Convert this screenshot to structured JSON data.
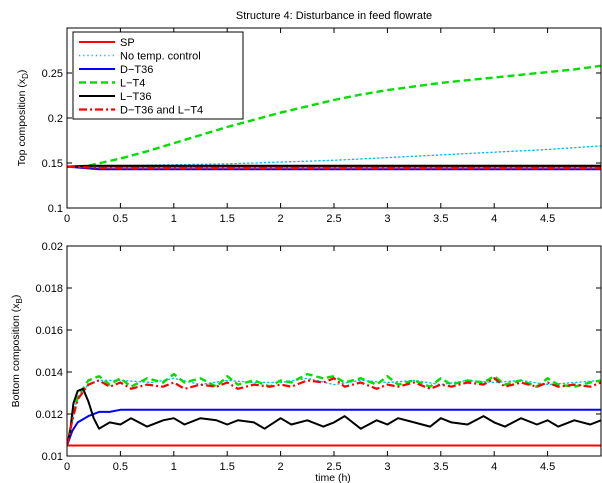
{
  "chart_data": [
    {
      "type": "line",
      "title": "Structure 4: Disturbance in feed flowrate",
      "xlabel": "",
      "ylabel": "Top composition (x_D)",
      "ylabel_main": "Top composition (x",
      "ylabel_sub": "D",
      "ylabel_close": ")",
      "xlim": [
        0,
        5
      ],
      "ylim": [
        0.1,
        0.3
      ],
      "xticks": [
        0,
        0.5,
        1,
        1.5,
        2,
        2.5,
        3,
        3.5,
        4,
        4.5
      ],
      "xtick_labels": [
        "0",
        "0.5",
        "1",
        "1.5",
        "2",
        "2.5",
        "3",
        "3.5",
        "4",
        "4.5"
      ],
      "yticks": [
        0.1,
        0.15,
        0.2,
        0.25
      ],
      "ytick_labels": [
        "0.1",
        "0.15",
        "0.2",
        "0.25"
      ],
      "grid": false,
      "legend_position": "top-left",
      "series": [
        {
          "name": "SP",
          "color": "#ff0000",
          "style": "solid",
          "x": [
            0,
            5
          ],
          "y": [
            0.146,
            0.146
          ]
        },
        {
          "name": "No temp. control",
          "color": "#00bfff",
          "style": "dotted",
          "x": [
            0,
            0.2,
            0.5,
            1,
            1.5,
            2,
            2.5,
            3,
            3.5,
            4,
            4.5,
            5
          ],
          "y": [
            0.146,
            0.146,
            0.147,
            0.148,
            0.149,
            0.151,
            0.153,
            0.156,
            0.159,
            0.162,
            0.165,
            0.169
          ]
        },
        {
          "name": "D−T36",
          "color": "#0000ff",
          "style": "solid",
          "x": [
            0,
            0.1,
            0.3,
            0.5,
            1,
            1.5,
            2,
            2.5,
            3,
            3.5,
            4,
            4.5,
            5
          ],
          "y": [
            0.146,
            0.145,
            0.143,
            0.143,
            0.143,
            0.143,
            0.143,
            0.143,
            0.143,
            0.143,
            0.143,
            0.143,
            0.143
          ]
        },
        {
          "name": "L−T4",
          "color": "#00e000",
          "style": "dashed",
          "x": [
            0,
            0.1,
            0.2,
            0.5,
            0.75,
            1,
            1.25,
            1.5,
            1.75,
            2,
            2.25,
            2.5,
            2.75,
            3,
            3.25,
            3.5,
            3.75,
            4,
            4.25,
            4.5,
            4.75,
            5
          ],
          "y": [
            0.146,
            0.146,
            0.147,
            0.155,
            0.163,
            0.172,
            0.181,
            0.19,
            0.198,
            0.206,
            0.213,
            0.22,
            0.226,
            0.231,
            0.235,
            0.239,
            0.242,
            0.245,
            0.248,
            0.251,
            0.254,
            0.258
          ]
        },
        {
          "name": "L−T36",
          "color": "#000000",
          "style": "solid",
          "x": [
            0,
            0.2,
            0.5,
            1,
            1.5,
            2,
            2.5,
            3,
            3.5,
            4,
            4.5,
            5
          ],
          "y": [
            0.146,
            0.147,
            0.147,
            0.147,
            0.147,
            0.147,
            0.147,
            0.147,
            0.147,
            0.147,
            0.147,
            0.147
          ]
        },
        {
          "name": "D−T36 and L−T4",
          "color": "#ff0000",
          "style": "dashdot",
          "x": [
            0,
            0.2,
            0.5,
            1,
            1.5,
            2,
            2.5,
            3,
            3.5,
            4,
            4.5,
            5
          ],
          "y": [
            0.146,
            0.145,
            0.144,
            0.144,
            0.144,
            0.144,
            0.144,
            0.144,
            0.144,
            0.144,
            0.144,
            0.144
          ]
        }
      ]
    },
    {
      "type": "line",
      "title": "",
      "xlabel": "time (h)",
      "ylabel": "Bottom composition (x_B)",
      "ylabel_main": "Bottom composition (x",
      "ylabel_sub": "B",
      "ylabel_close": ")",
      "xlim": [
        0,
        5
      ],
      "ylim": [
        0.01,
        0.02
      ],
      "xticks": [
        0,
        0.5,
        1,
        1.5,
        2,
        2.5,
        3,
        3.5,
        4,
        4.5
      ],
      "xtick_labels": [
        "0",
        "0.5",
        "1",
        "1.5",
        "2",
        "2.5",
        "3",
        "3.5",
        "4",
        "4.5"
      ],
      "yticks": [
        0.01,
        0.012,
        0.014,
        0.016,
        0.018,
        0.02
      ],
      "ytick_labels": [
        "0.01",
        "0.012",
        "0.014",
        "0.016",
        "0.018",
        "0.02"
      ],
      "grid": false,
      "series": [
        {
          "name": "SP",
          "color": "#ff0000",
          "style": "solid",
          "x": [
            0,
            5
          ],
          "y": [
            0.0105,
            0.0105
          ]
        },
        {
          "name": "No temp. control",
          "color": "#00bfff",
          "style": "dotted",
          "x": [
            0,
            0.05,
            0.1,
            0.2,
            0.3,
            0.5,
            0.8,
            1,
            1.25,
            1.5,
            1.75,
            2,
            2.25,
            2.5,
            2.75,
            3,
            3.25,
            3.5,
            3.75,
            4,
            4.25,
            4.5,
            4.75,
            5
          ],
          "y": [
            0.0105,
            0.0118,
            0.0128,
            0.0134,
            0.0136,
            0.0136,
            0.0135,
            0.0137,
            0.0134,
            0.0136,
            0.0135,
            0.0135,
            0.0137,
            0.0134,
            0.0136,
            0.0135,
            0.0136,
            0.0134,
            0.0136,
            0.0135,
            0.0136,
            0.0134,
            0.0135,
            0.0136
          ]
        },
        {
          "name": "D−T36",
          "color": "#0000ff",
          "style": "solid",
          "x": [
            0,
            0.05,
            0.1,
            0.2,
            0.3,
            0.4,
            0.5,
            0.75,
            1,
            1.5,
            2,
            2.5,
            3,
            3.5,
            4,
            4.5,
            5
          ],
          "y": [
            0.0105,
            0.0112,
            0.0116,
            0.0119,
            0.0121,
            0.0121,
            0.0122,
            0.0122,
            0.0122,
            0.0122,
            0.0122,
            0.0122,
            0.0122,
            0.0122,
            0.0122,
            0.0122,
            0.0122
          ]
        },
        {
          "name": "L−T4",
          "color": "#00e000",
          "style": "dashed",
          "x": [
            0,
            0.05,
            0.1,
            0.2,
            0.3,
            0.4,
            0.5,
            0.6,
            0.75,
            0.9,
            1,
            1.1,
            1.25,
            1.4,
            1.5,
            1.6,
            1.75,
            1.9,
            2,
            2.1,
            2.25,
            2.4,
            2.5,
            2.6,
            2.75,
            2.9,
            3,
            3.1,
            3.25,
            3.4,
            3.5,
            3.6,
            3.75,
            3.9,
            4,
            4.1,
            4.25,
            4.4,
            4.5,
            4.6,
            4.75,
            4.9,
            5
          ],
          "y": [
            0.0105,
            0.0118,
            0.0128,
            0.0136,
            0.0138,
            0.0134,
            0.0137,
            0.0133,
            0.0137,
            0.0135,
            0.0139,
            0.0135,
            0.0137,
            0.0133,
            0.0138,
            0.0134,
            0.0136,
            0.0133,
            0.0136,
            0.0135,
            0.0139,
            0.0137,
            0.0138,
            0.0135,
            0.0137,
            0.0134,
            0.0138,
            0.0134,
            0.0136,
            0.0133,
            0.0137,
            0.0134,
            0.0136,
            0.0135,
            0.0138,
            0.0134,
            0.0136,
            0.0133,
            0.0137,
            0.0134,
            0.0133,
            0.0135,
            0.0136
          ]
        },
        {
          "name": "L−T36",
          "color": "#000000",
          "style": "solid",
          "x": [
            0,
            0.03,
            0.06,
            0.1,
            0.15,
            0.2,
            0.25,
            0.3,
            0.4,
            0.5,
            0.6,
            0.75,
            0.9,
            1,
            1.1,
            1.25,
            1.4,
            1.5,
            1.6,
            1.75,
            1.85,
            2,
            2.1,
            2.25,
            2.4,
            2.5,
            2.6,
            2.75,
            2.9,
            3,
            3.1,
            3.25,
            3.4,
            3.5,
            3.6,
            3.75,
            3.9,
            4,
            4.1,
            4.25,
            4.4,
            4.5,
            4.6,
            4.75,
            4.9,
            5
          ],
          "y": [
            0.0105,
            0.0112,
            0.0125,
            0.0131,
            0.0132,
            0.0126,
            0.0118,
            0.0113,
            0.0116,
            0.0115,
            0.0118,
            0.0114,
            0.0117,
            0.0118,
            0.0115,
            0.0118,
            0.0117,
            0.0115,
            0.0117,
            0.0116,
            0.0113,
            0.0118,
            0.0115,
            0.0117,
            0.0114,
            0.0116,
            0.0119,
            0.0113,
            0.0117,
            0.0115,
            0.0118,
            0.0116,
            0.0114,
            0.0118,
            0.0116,
            0.0115,
            0.0119,
            0.0116,
            0.0114,
            0.0118,
            0.0115,
            0.0117,
            0.0114,
            0.0117,
            0.0115,
            0.0117
          ]
        },
        {
          "name": "D−T36 and L−T4",
          "color": "#ff0000",
          "style": "dashdot",
          "x": [
            0,
            0.05,
            0.1,
            0.2,
            0.3,
            0.4,
            0.5,
            0.6,
            0.75,
            0.9,
            1,
            1.1,
            1.25,
            1.4,
            1.5,
            1.6,
            1.75,
            1.9,
            2,
            2.1,
            2.25,
            2.4,
            2.5,
            2.6,
            2.75,
            2.9,
            3,
            3.1,
            3.25,
            3.4,
            3.5,
            3.6,
            3.75,
            3.9,
            4,
            4.1,
            4.25,
            4.4,
            4.5,
            4.6,
            4.75,
            4.9,
            5
          ],
          "y": [
            0.0105,
            0.0117,
            0.0127,
            0.0134,
            0.0136,
            0.0133,
            0.0135,
            0.0132,
            0.0134,
            0.0133,
            0.0135,
            0.0132,
            0.0134,
            0.0133,
            0.0135,
            0.0132,
            0.0134,
            0.0133,
            0.0134,
            0.0133,
            0.0136,
            0.0135,
            0.0137,
            0.0133,
            0.0135,
            0.0132,
            0.0134,
            0.0133,
            0.0135,
            0.0132,
            0.0134,
            0.0133,
            0.0135,
            0.0134,
            0.0137,
            0.0133,
            0.0135,
            0.0133,
            0.0135,
            0.0133,
            0.0134,
            0.0133,
            0.0135
          ]
        }
      ]
    }
  ]
}
